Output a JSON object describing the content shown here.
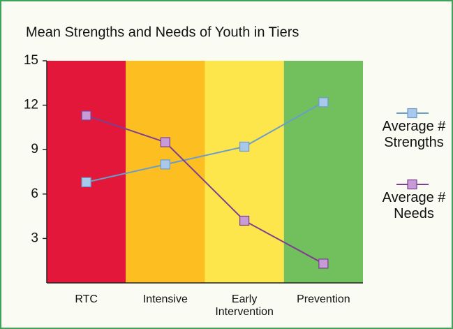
{
  "chart_data": {
    "type": "line",
    "title": "Mean Strengths and Needs of Youth in Tiers",
    "categories": [
      "RTC",
      "Intensive",
      "Early Intervention",
      "Prevention"
    ],
    "band_colors": [
      "#e3173a",
      "#fdbe22",
      "#fde64b",
      "#72bf5e"
    ],
    "series": [
      {
        "name": "Average # Strengths",
        "color": "#6a9dc9",
        "marker_color": "#a8c8ec",
        "values": [
          6.8,
          8,
          9.2,
          12.2
        ]
      },
      {
        "name": "Average # Needs",
        "color": "#7d3f8f",
        "marker_color": "#c69bd6",
        "values": [
          11.3,
          9.5,
          4.2,
          1.3
        ]
      }
    ],
    "ylim": [
      0,
      15
    ],
    "yticks": [
      3,
      6,
      9,
      12,
      15
    ],
    "legend": "right"
  }
}
